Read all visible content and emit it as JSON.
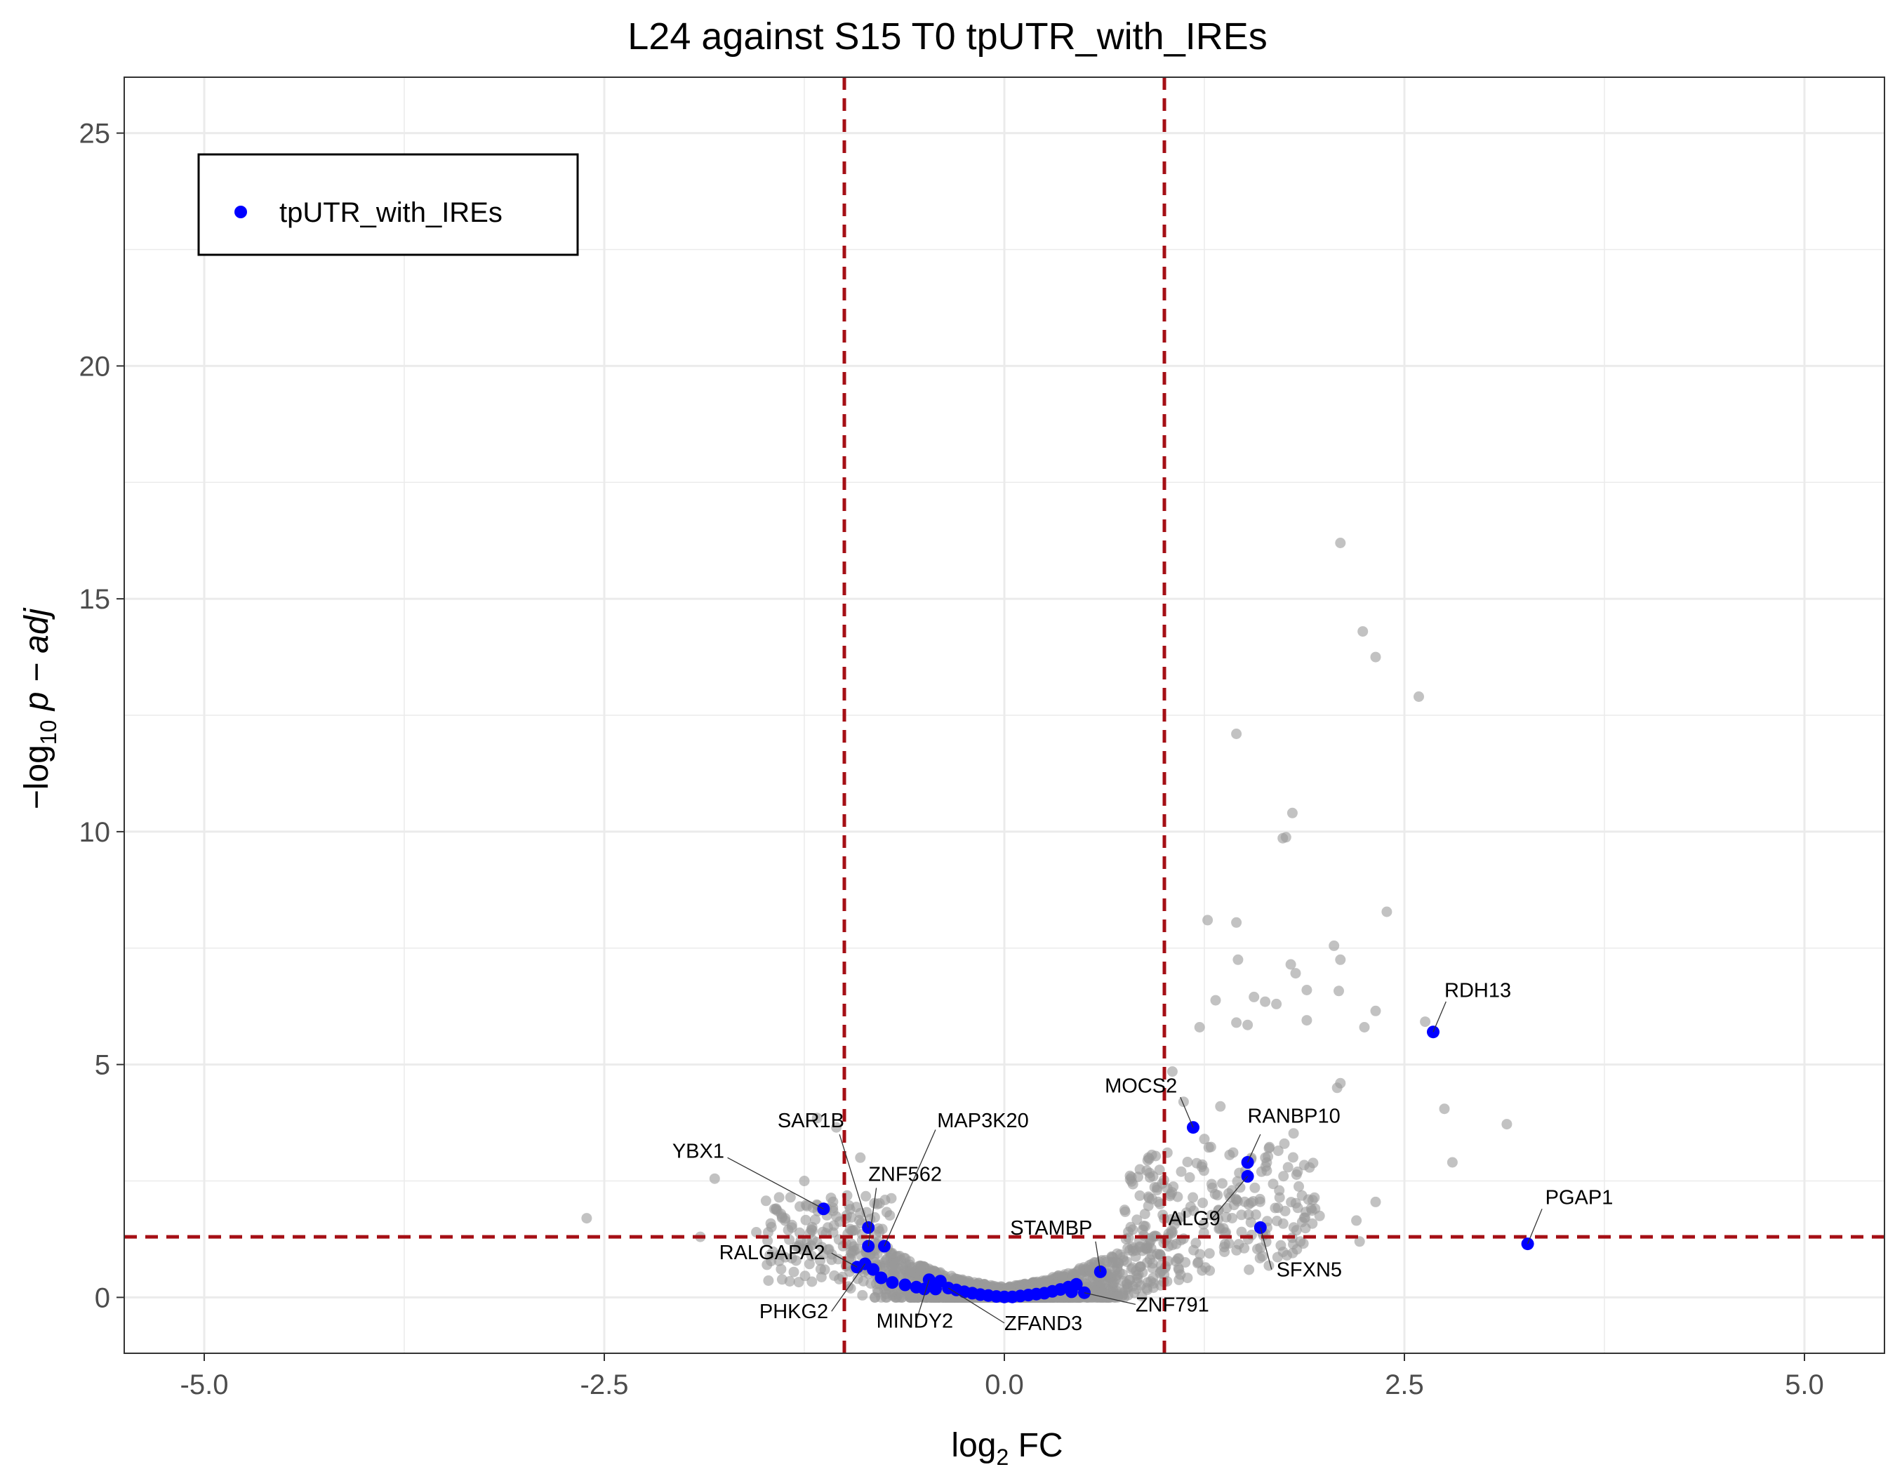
{
  "chart_data": {
    "type": "scatter",
    "title": "L24 against S15 T0 tpUTR_with_IREs",
    "xlabel": {
      "main": "log",
      "sub": "2",
      "tail": " FC"
    },
    "ylabel": {
      "prefix": "−log",
      "sub": "10",
      "tail": " p − adj"
    },
    "xlim": [
      -5.5,
      5.5
    ],
    "ylim": [
      -1.2,
      26.2
    ],
    "xticks": [
      {
        "value": -5,
        "label": "-5.0"
      },
      {
        "value": -2.5,
        "label": "-2.5"
      },
      {
        "value": 0,
        "label": "0.0"
      },
      {
        "value": 2.5,
        "label": "2.5"
      },
      {
        "value": 5,
        "label": "5.0"
      }
    ],
    "yticks": [
      {
        "value": 0,
        "label": "0"
      },
      {
        "value": 5,
        "label": "5"
      },
      {
        "value": 10,
        "label": "10"
      },
      {
        "value": 15,
        "label": "15"
      },
      {
        "value": 20,
        "label": "20"
      },
      {
        "value": 25,
        "label": "25"
      }
    ],
    "grid": true,
    "thresholds": {
      "log2fc": [
        -1,
        1
      ],
      "neg_log10_padj": 1.3
    },
    "legend": {
      "position": "top-left",
      "entries": [
        {
          "label": "tpUTR_with_IREs",
          "color": "#0000ff"
        }
      ]
    },
    "colors": {
      "background_genes": "#999999",
      "highlight": "#0000ff",
      "threshold": "#a50f15",
      "grid": "#ebebeb"
    },
    "series": [
      {
        "name": "tpUTR_with_IREs",
        "points": [
          {
            "x": 2.68,
            "y": 5.7,
            "label": "RDH13"
          },
          {
            "x": 3.27,
            "y": 1.15,
            "label": "PGAP1"
          },
          {
            "x": 1.18,
            "y": 3.65,
            "label": "MOCS2"
          },
          {
            "x": 1.52,
            "y": 2.9,
            "label": "RANBP10"
          },
          {
            "x": 1.52,
            "y": 2.6,
            "label": "ALG9"
          },
          {
            "x": 1.6,
            "y": 1.5,
            "label": "SFXN5"
          },
          {
            "x": 0.6,
            "y": 0.55,
            "label": "STAMBP"
          },
          {
            "x": 0.5,
            "y": 0.1,
            "label": "ZNF791"
          },
          {
            "x": -1.13,
            "y": 1.9,
            "label": "YBX1"
          },
          {
            "x": -0.85,
            "y": 1.5,
            "label": "SAR1B"
          },
          {
            "x": -0.85,
            "y": 1.1,
            "label": "ZNF562"
          },
          {
            "x": -0.75,
            "y": 1.1,
            "label": "MAP3K20"
          },
          {
            "x": -0.92,
            "y": 0.65,
            "label": "RALGAPA2"
          },
          {
            "x": -0.87,
            "y": 0.72,
            "label": "PHKG2"
          },
          {
            "x": -0.47,
            "y": 0.38,
            "label": "MINDY2"
          },
          {
            "x": -0.35,
            "y": 0.2,
            "label": "ZFAND3"
          },
          {
            "x": -0.82,
            "y": 0.6
          },
          {
            "x": -0.77,
            "y": 0.42
          },
          {
            "x": -0.7,
            "y": 0.32
          },
          {
            "x": -0.62,
            "y": 0.27
          },
          {
            "x": -0.55,
            "y": 0.22
          },
          {
            "x": -0.5,
            "y": 0.18
          },
          {
            "x": -0.43,
            "y": 0.18
          },
          {
            "x": -0.4,
            "y": 0.35
          },
          {
            "x": -0.3,
            "y": 0.16
          },
          {
            "x": -0.25,
            "y": 0.12
          },
          {
            "x": -0.2,
            "y": 0.09
          },
          {
            "x": -0.15,
            "y": 0.06
          },
          {
            "x": -0.1,
            "y": 0.04
          },
          {
            "x": -0.05,
            "y": 0.02
          },
          {
            "x": 0,
            "y": 0.01
          },
          {
            "x": 0.05,
            "y": 0.01
          },
          {
            "x": 0.1,
            "y": 0.03
          },
          {
            "x": 0.15,
            "y": 0.05
          },
          {
            "x": 0.2,
            "y": 0.07
          },
          {
            "x": 0.25,
            "y": 0.09
          },
          {
            "x": 0.3,
            "y": 0.13
          },
          {
            "x": 0.35,
            "y": 0.17
          },
          {
            "x": 0.4,
            "y": 0.22
          },
          {
            "x": 0.45,
            "y": 0.28
          },
          {
            "x": 0.42,
            "y": 0.12
          }
        ]
      }
    ],
    "annotations": [
      {
        "label": "RDH13",
        "tx": 2.75,
        "ty": 6.45,
        "anchor": "start",
        "px": 2.68,
        "py": 5.7,
        "lx": 2.76,
        "ly": 6.35
      },
      {
        "label": "PGAP1",
        "tx": 3.38,
        "ty": 2.0,
        "anchor": "start",
        "px": 3.27,
        "py": 1.15,
        "lx": 3.36,
        "ly": 1.9
      },
      {
        "label": "MOCS2",
        "tx": 1.08,
        "ty": 4.4,
        "anchor": "end",
        "px": 1.18,
        "py": 3.65,
        "lx": 1.1,
        "ly": 4.3
      },
      {
        "label": "RANBP10",
        "tx": 1.52,
        "ty": 3.75,
        "anchor": "start",
        "px": 1.52,
        "py": 2.9,
        "lx": 1.6,
        "ly": 3.5
      },
      {
        "label": "ALG9",
        "tx": 1.35,
        "ty": 1.55,
        "anchor": "end",
        "px": 1.52,
        "py": 2.6,
        "lx": 1.3,
        "ly": 1.7
      },
      {
        "label": "SFXN5",
        "tx": 1.7,
        "ty": 0.45,
        "anchor": "start",
        "px": 1.6,
        "py": 1.5,
        "lx": 1.67,
        "ly": 0.6
      },
      {
        "label": "STAMBP",
        "tx": 0.55,
        "ty": 1.35,
        "anchor": "end",
        "px": 0.6,
        "py": 0.55,
        "lx": 0.57,
        "ly": 1.2
      },
      {
        "label": "ZNF791",
        "tx": 0.82,
        "ty": -0.3,
        "anchor": "start",
        "px": 0.5,
        "py": 0.1,
        "lx": 0.82,
        "ly": -0.15
      },
      {
        "label": "YBX1",
        "tx": -1.75,
        "ty": 3.0,
        "anchor": "end",
        "px": -1.13,
        "py": 1.9,
        "lx": -1.73,
        "ly": 3.0
      },
      {
        "label": "SAR1B",
        "tx": -1.0,
        "ty": 3.65,
        "anchor": "end",
        "px": -0.85,
        "py": 1.5,
        "lx": -1.03,
        "ly": 3.5
      },
      {
        "label": "ZNF562",
        "tx": -0.85,
        "ty": 2.5,
        "anchor": "start",
        "px": -0.85,
        "py": 1.1,
        "lx": -0.8,
        "ly": 2.35
      },
      {
        "label": "MAP3K20",
        "tx": -0.42,
        "ty": 3.65,
        "anchor": "start",
        "px": -0.75,
        "py": 1.1,
        "lx": -0.43,
        "ly": 3.6
      },
      {
        "label": "RALGAPA2",
        "tx": -1.12,
        "ty": 0.82,
        "anchor": "end",
        "px": -0.92,
        "py": 0.65,
        "lx": -1.08,
        "ly": 0.95
      },
      {
        "label": "PHKG2",
        "tx": -1.1,
        "ty": -0.45,
        "anchor": "end",
        "px": -0.87,
        "py": 0.72,
        "lx": -1.08,
        "ly": -0.3
      },
      {
        "label": "MINDY2",
        "tx": -0.8,
        "ty": -0.65,
        "anchor": "start",
        "px": -0.47,
        "py": 0.38,
        "lx": -0.55,
        "ly": -0.5
      },
      {
        "label": "ZFAND3",
        "tx": 0.0,
        "ty": -0.7,
        "anchor": "start",
        "px": -0.35,
        "py": 0.2,
        "lx": 0.0,
        "ly": -0.55
      }
    ]
  }
}
